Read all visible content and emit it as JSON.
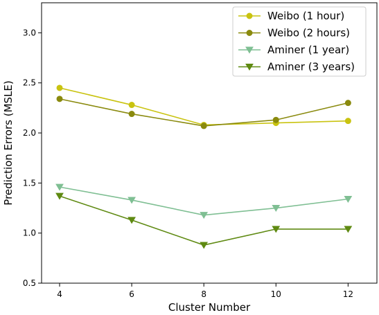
{
  "chart_data": {
    "type": "line",
    "xlabel": "Cluster Number",
    "ylabel": "Prediction Errors (MSLE)",
    "x": [
      4,
      6,
      8,
      10,
      12
    ],
    "xticks": [
      "4",
      "6",
      "8",
      "10",
      "12"
    ],
    "xlim": [
      3.5,
      12.8
    ],
    "ylim": [
      0.5,
      3.3
    ],
    "yticks": [
      "0.5",
      "1.0",
      "1.5",
      "2.0",
      "2.5",
      "3.0"
    ],
    "legend_position": "top-right",
    "grid": false,
    "series": [
      {
        "name": "Weibo (1 hour)",
        "values": [
          2.45,
          2.28,
          2.08,
          2.1,
          2.12
        ],
        "color": "#c9c310",
        "marker": "circle"
      },
      {
        "name": "Weibo (2 hours)",
        "values": [
          2.34,
          2.19,
          2.07,
          2.13,
          2.3
        ],
        "color": "#8a8a0e",
        "marker": "circle"
      },
      {
        "name": "Aminer (1 year)",
        "values": [
          1.46,
          1.33,
          1.18,
          1.25,
          1.34
        ],
        "color": "#7fbf93",
        "marker": "triangle-down"
      },
      {
        "name": "Aminer (3 years)",
        "values": [
          1.37,
          1.13,
          0.88,
          1.04,
          1.04
        ],
        "color": "#5f8a12",
        "marker": "triangle-down"
      }
    ]
  }
}
